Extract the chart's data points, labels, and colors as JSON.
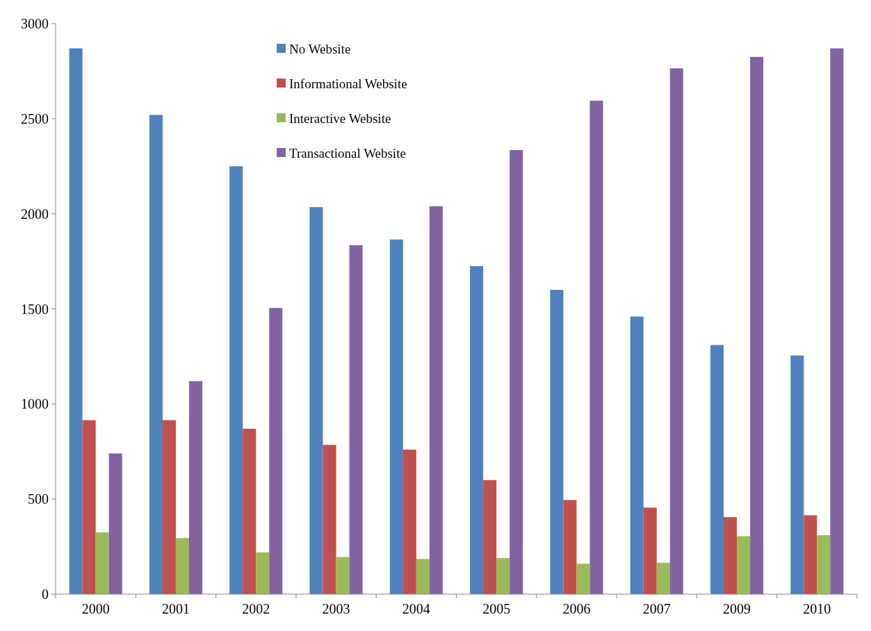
{
  "chart_data": {
    "type": "bar",
    "categories": [
      "2000",
      "2001",
      "2002",
      "2003",
      "2004",
      "2005",
      "2006",
      "2007",
      "2009",
      "2010"
    ],
    "series": [
      {
        "name": "No Website",
        "color": "#4f81bd",
        "values": [
          2870,
          2520,
          2250,
          2035,
          1865,
          1725,
          1600,
          1460,
          1310,
          1255
        ]
      },
      {
        "name": "Informational Website",
        "color": "#c0504d",
        "values": [
          915,
          915,
          870,
          785,
          760,
          600,
          495,
          455,
          405,
          415
        ]
      },
      {
        "name": "Interactive Website",
        "color": "#9bbb59",
        "values": [
          325,
          295,
          220,
          195,
          185,
          190,
          160,
          165,
          305,
          310
        ]
      },
      {
        "name": "Transactional Website",
        "color": "#8064a2",
        "values": [
          740,
          1120,
          1505,
          1835,
          2040,
          2335,
          2595,
          2765,
          2825,
          2870
        ]
      }
    ],
    "ylim": [
      0,
      3000
    ],
    "yticks": [
      0,
      500,
      1000,
      1500,
      2000,
      2500,
      3000
    ],
    "grid": false,
    "legend": "top"
  }
}
